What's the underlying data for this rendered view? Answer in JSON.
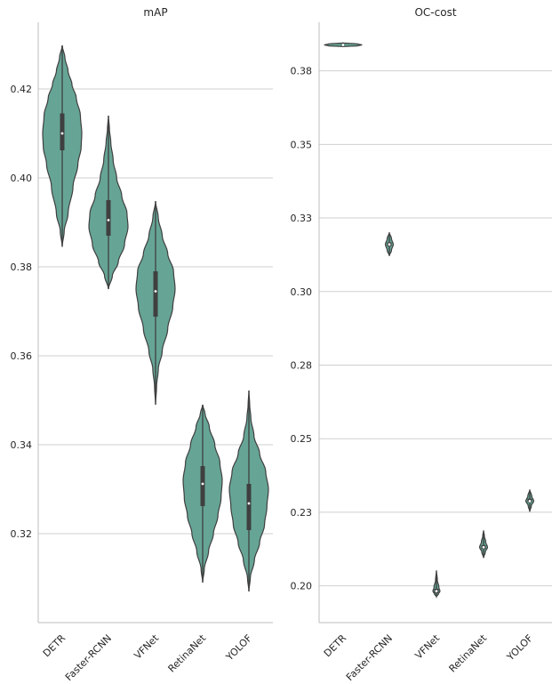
{
  "chart_data": [
    {
      "type": "violin",
      "title": "mAP",
      "xlabel": "",
      "ylabel": "",
      "categories": [
        "DETR",
        "Faster-RCNN",
        "VFNet",
        "RetinaNet",
        "YOLOF"
      ],
      "ylim": [
        0.3,
        0.435
      ],
      "yticks": [
        0.32,
        0.34,
        0.36,
        0.38,
        0.4,
        0.42
      ],
      "ytick_labels": [
        "0.32",
        "0.34",
        "0.36",
        "0.38",
        "0.40",
        "0.42"
      ],
      "grid": "horizontal",
      "color": "#66a596",
      "series": [
        {
          "category": "DETR",
          "min": 0.3845,
          "q1": 0.4062,
          "median": 0.41,
          "q3": 0.4145,
          "max": 0.4298,
          "width_profile": [
            [
              0.3845,
              0.0
            ],
            [
              0.388,
              0.1
            ],
            [
              0.392,
              0.3
            ],
            [
              0.398,
              0.55
            ],
            [
              0.403,
              0.8
            ],
            [
              0.407,
              0.97
            ],
            [
              0.41,
              1.0
            ],
            [
              0.414,
              0.93
            ],
            [
              0.418,
              0.72
            ],
            [
              0.421,
              0.5
            ],
            [
              0.424,
              0.3
            ],
            [
              0.427,
              0.14
            ],
            [
              0.4298,
              0.0
            ]
          ]
        },
        {
          "category": "Faster-RCNN",
          "min": 0.375,
          "q1": 0.387,
          "median": 0.3905,
          "q3": 0.395,
          "max": 0.414,
          "width_profile": [
            [
              0.375,
              0.0
            ],
            [
              0.378,
              0.2
            ],
            [
              0.381,
              0.5
            ],
            [
              0.385,
              0.82
            ],
            [
              0.389,
              1.0
            ],
            [
              0.392,
              0.95
            ],
            [
              0.396,
              0.68
            ],
            [
              0.4,
              0.42
            ],
            [
              0.404,
              0.24
            ],
            [
              0.408,
              0.12
            ],
            [
              0.411,
              0.05
            ],
            [
              0.414,
              0.0
            ]
          ]
        },
        {
          "category": "VFNet",
          "min": 0.349,
          "q1": 0.3688,
          "median": 0.3745,
          "q3": 0.379,
          "max": 0.3948,
          "width_profile": [
            [
              0.349,
              0.0
            ],
            [
              0.353,
              0.05
            ],
            [
              0.357,
              0.14
            ],
            [
              0.361,
              0.34
            ],
            [
              0.366,
              0.62
            ],
            [
              0.371,
              0.88
            ],
            [
              0.375,
              1.0
            ],
            [
              0.379,
              0.92
            ],
            [
              0.383,
              0.62
            ],
            [
              0.387,
              0.34
            ],
            [
              0.391,
              0.14
            ],
            [
              0.3948,
              0.0
            ]
          ]
        },
        {
          "category": "RetinaNet",
          "min": 0.309,
          "q1": 0.3262,
          "median": 0.3312,
          "q3": 0.3352,
          "max": 0.349,
          "width_profile": [
            [
              0.309,
              0.0
            ],
            [
              0.312,
              0.08
            ],
            [
              0.316,
              0.3
            ],
            [
              0.32,
              0.55
            ],
            [
              0.324,
              0.78
            ],
            [
              0.328,
              0.94
            ],
            [
              0.332,
              1.0
            ],
            [
              0.336,
              0.88
            ],
            [
              0.34,
              0.62
            ],
            [
              0.344,
              0.34
            ],
            [
              0.347,
              0.12
            ],
            [
              0.349,
              0.0
            ]
          ]
        },
        {
          "category": "YOLOF",
          "min": 0.307,
          "q1": 0.3208,
          "median": 0.3268,
          "q3": 0.3312,
          "max": 0.3522,
          "width_profile": [
            [
              0.307,
              0.0
            ],
            [
              0.31,
              0.07
            ],
            [
              0.314,
              0.28
            ],
            [
              0.318,
              0.55
            ],
            [
              0.322,
              0.8
            ],
            [
              0.326,
              0.92
            ],
            [
              0.33,
              1.0
            ],
            [
              0.334,
              0.86
            ],
            [
              0.338,
              0.55
            ],
            [
              0.342,
              0.26
            ],
            [
              0.346,
              0.1
            ],
            [
              0.349,
              0.04
            ],
            [
              0.3522,
              0.0
            ]
          ]
        }
      ]
    },
    {
      "type": "violin",
      "title": "OC-cost",
      "xlabel": "",
      "ylabel": "",
      "categories": [
        "DETR",
        "Faster-RCNN",
        "VFNet",
        "RetinaNet",
        "YOLOF"
      ],
      "ylim": [
        0.1875,
        0.3915
      ],
      "yticks": [
        0.2,
        0.225,
        0.25,
        0.275,
        0.3,
        0.325,
        0.35,
        0.375
      ],
      "ytick_labels": [
        "0.20",
        "0.23",
        "0.25",
        "0.28",
        "0.30",
        "0.33",
        "0.35",
        "0.38"
      ],
      "grid": "horizontal",
      "color": "#66a596",
      "series": [
        {
          "category": "DETR",
          "min": 0.3832,
          "q1": 0.3837,
          "median": 0.3838,
          "q3": 0.384,
          "max": 0.3845,
          "width_profile": [
            [
              0.3832,
              0.0
            ],
            [
              0.3835,
              0.8
            ],
            [
              0.3838,
              1.0
            ],
            [
              0.3841,
              0.8
            ],
            [
              0.3845,
              0.0
            ]
          ],
          "max_width_ratio": 0.95
        },
        {
          "category": "Faster-RCNN",
          "min": 0.3121,
          "q1": 0.3154,
          "median": 0.316,
          "q3": 0.3167,
          "max": 0.3201,
          "width_profile": [
            [
              0.3121,
              0.0
            ],
            [
              0.314,
              0.55
            ],
            [
              0.316,
              1.0
            ],
            [
              0.318,
              0.55
            ],
            [
              0.3201,
              0.0
            ]
          ],
          "max_width_ratio": 0.2
        },
        {
          "category": "VFNet",
          "min": 0.1963,
          "q1": 0.1975,
          "median": 0.1982,
          "q3": 0.199,
          "max": 0.2052,
          "width_profile": [
            [
              0.1963,
              0.0
            ],
            [
              0.1972,
              0.55
            ],
            [
              0.1982,
              1.0
            ],
            [
              0.1995,
              0.7
            ],
            [
              0.202,
              0.25
            ],
            [
              0.2052,
              0.0
            ]
          ],
          "max_width_ratio": 0.18
        },
        {
          "category": "RetinaNet",
          "min": 0.2095,
          "q1": 0.2125,
          "median": 0.2131,
          "q3": 0.2138,
          "max": 0.2188,
          "width_profile": [
            [
              0.2095,
              0.0
            ],
            [
              0.2115,
              0.45
            ],
            [
              0.2131,
              1.0
            ],
            [
              0.215,
              0.55
            ],
            [
              0.217,
              0.2
            ],
            [
              0.2188,
              0.0
            ]
          ],
          "max_width_ratio": 0.2
        },
        {
          "category": "YOLOF",
          "min": 0.2252,
          "q1": 0.2284,
          "median": 0.2288,
          "q3": 0.2296,
          "max": 0.2327,
          "width_profile": [
            [
              0.2252,
              0.0
            ],
            [
              0.2272,
              0.4
            ],
            [
              0.2288,
              1.0
            ],
            [
              0.2305,
              0.5
            ],
            [
              0.2327,
              0.0
            ]
          ],
          "max_width_ratio": 0.2
        }
      ]
    }
  ]
}
